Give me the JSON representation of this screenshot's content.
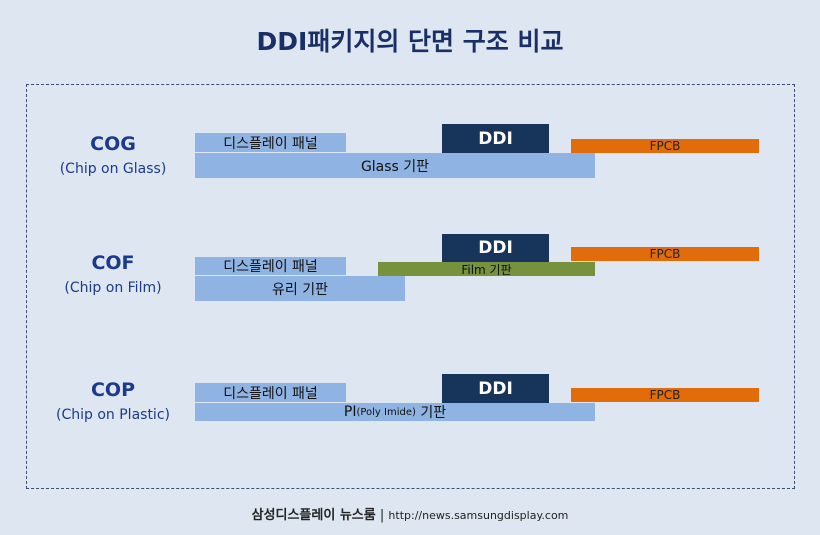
{
  "title": "DDI패키지의 단면 구조 비교",
  "rows": [
    {
      "name": "COG",
      "sub": "(Chip on Glass)",
      "panel": "디스플레이 패널",
      "ddi": "DDI",
      "fpcb": "FPCB",
      "substrate": "Glass 기판"
    },
    {
      "name": "COF",
      "sub": "(Chip on Film)",
      "panel": "디스플레이 패널",
      "ddi": "DDI",
      "fpcb": "FPCB",
      "film": "Film 기판",
      "substrate": "유리 기판"
    },
    {
      "name": "COP",
      "sub": "(Chip on Plastic)",
      "panel": "디스플레이 패널",
      "ddi": "DDI",
      "fpcb": "FPCB",
      "substrate_main": "PI",
      "substrate_paren": "(Poly Imide)",
      "substrate_tail": "기판"
    }
  ],
  "footer": {
    "brand": "삼성디스플레이 뉴스룸",
    "sep": "|",
    "url": "http://news.samsungdisplay.com"
  },
  "colors": {
    "panel": "#8fb3e2",
    "ddi": "#17345a",
    "fpcb": "#e36c0a",
    "film": "#76923c",
    "text": "#1b3a8c"
  }
}
